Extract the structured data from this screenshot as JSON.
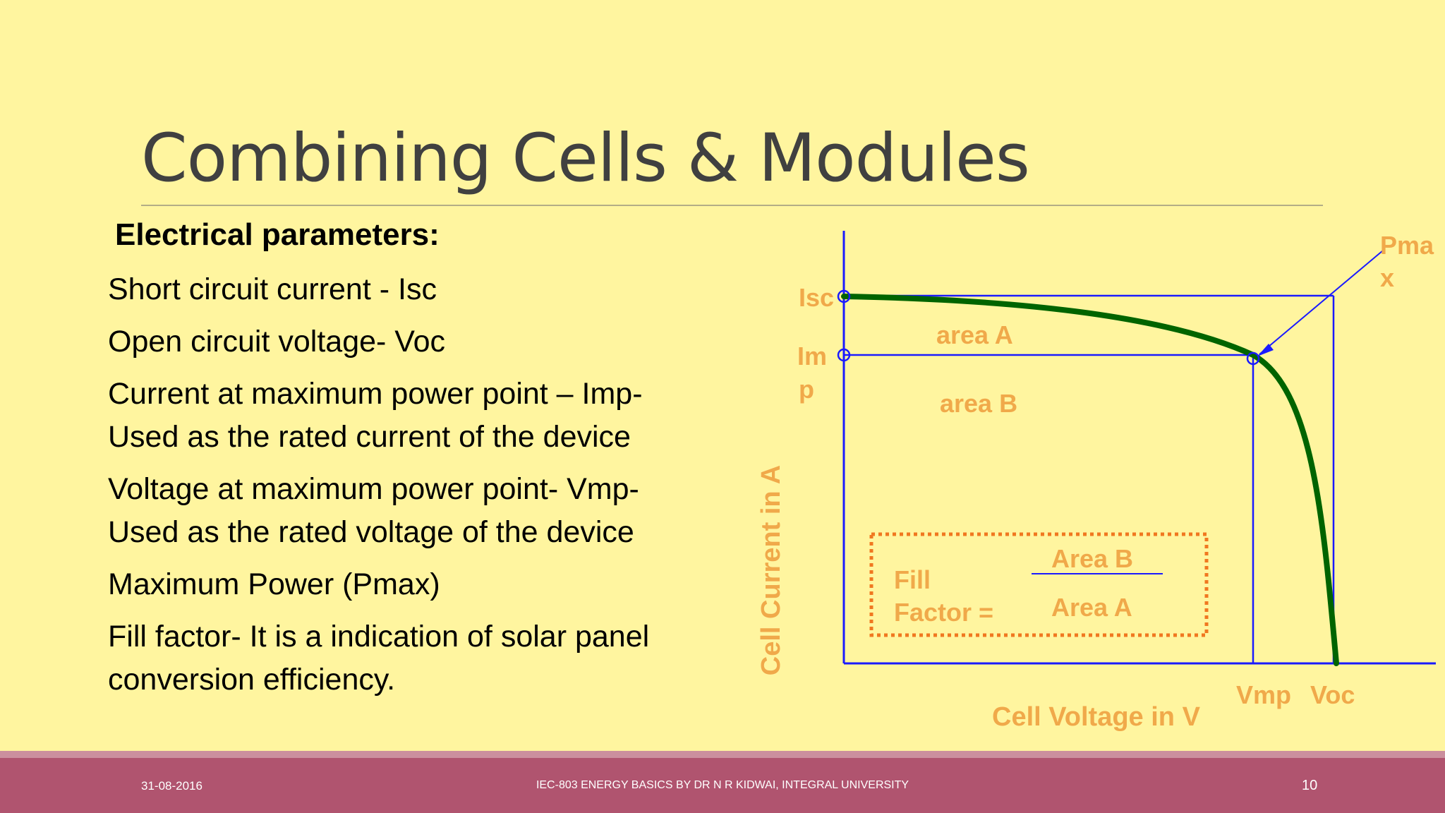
{
  "slide": {
    "title": "Combining Cells & Modules",
    "section_heading": "Electrical parameters:"
  },
  "parameters": [
    {
      "lines": [
        "Short circuit current - Isc"
      ]
    },
    {
      "lines": [
        "Open circuit voltage- Voc"
      ]
    },
    {
      "lines": [
        "Current at maximum power point – Imp-",
        "Used as the rated current of the device"
      ]
    },
    {
      "lines": [
        "Voltage at maximum power point- Vmp-",
        "Used as the rated  voltage of the device"
      ]
    },
    {
      "lines": [
        "Maximum Power (Pmax)"
      ]
    },
    {
      "lines": [
        "Fill factor- It is a indication of solar panel",
        "conversion efficiency."
      ]
    }
  ],
  "diagram": {
    "ylabel": "Cell Current in A",
    "xlabel": "Cell Voltage in V",
    "labels": {
      "isc": "Isc",
      "imp_line1": "Im",
      "imp_line2": "p",
      "pmax_line1": "Pma",
      "pmax_line2": "x",
      "vmp": "Vmp",
      "voc": "Voc",
      "area_a": "area A",
      "area_b": "area B"
    },
    "fill_factor": {
      "label_line1": "Fill",
      "label_line2": "Factor =",
      "numerator": "Area B",
      "denominator": "Area A"
    },
    "colors": {
      "axis": "#1a1aff",
      "curve": "#006400",
      "label": "#f0a94a",
      "box": "#f07820"
    }
  },
  "footer": {
    "date": "31-08-2016",
    "course": "IEC-803 ENERGY BASICS  BY DR N R KIDWAI, INTEGRAL UNIVERSITY",
    "page": "10"
  }
}
